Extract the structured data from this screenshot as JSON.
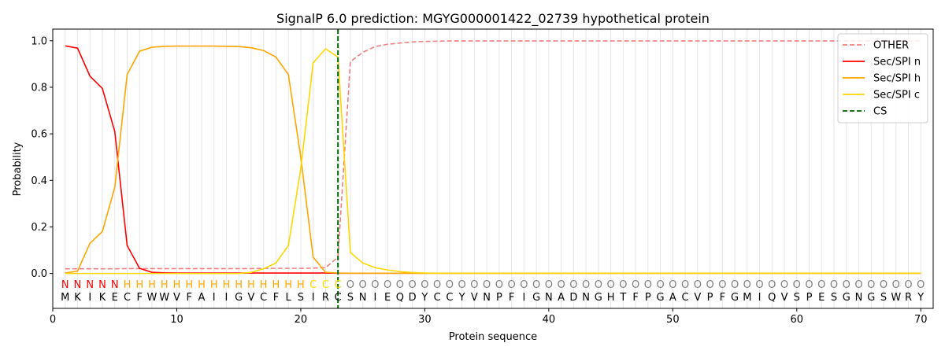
{
  "chart_data": {
    "type": "line",
    "title": "SignalP 6.0 prediction: MGYG000001422_02739 hypothetical protein",
    "xlabel": "Protein sequence",
    "ylabel": "Probability",
    "xlim": [
      0,
      71
    ],
    "ylim": [
      -0.15,
      1.05
    ],
    "xticks": [
      0,
      10,
      20,
      30,
      40,
      50,
      60,
      70
    ],
    "yticks": [
      0.0,
      0.2,
      0.4,
      0.6,
      0.8,
      1.0
    ],
    "ytick_labels": [
      "0.0",
      "0.2",
      "0.4",
      "0.6",
      "0.8",
      "1.0"
    ],
    "legend_position": "top-right",
    "sequence": [
      "M",
      "K",
      "I",
      "K",
      "E",
      "C",
      "F",
      "W",
      "W",
      "V",
      "F",
      "A",
      "I",
      "I",
      "G",
      "V",
      "C",
      "F",
      "L",
      "S",
      "I",
      "R",
      "C",
      "S",
      "N",
      "I",
      "E",
      "Q",
      "D",
      "Y",
      "C",
      "C",
      "Y",
      "V",
      "N",
      "P",
      "F",
      "I",
      "G",
      "N",
      "A",
      "D",
      "N",
      "G",
      "H",
      "T",
      "F",
      "P",
      "G",
      "A",
      "C",
      "V",
      "P",
      "F",
      "G",
      "M",
      "I",
      "Q",
      "V",
      "S",
      "P",
      "E",
      "S",
      "G",
      "N",
      "G",
      "S",
      "W",
      "R",
      "Y"
    ],
    "region_labels": [
      "N",
      "N",
      "N",
      "N",
      "N",
      "H",
      "H",
      "H",
      "H",
      "H",
      "H",
      "H",
      "H",
      "H",
      "H",
      "H",
      "H",
      "H",
      "H",
      "H",
      "C",
      "C",
      "C",
      "O",
      "O",
      "O",
      "O",
      "O",
      "O",
      "O",
      "O",
      "O",
      "O",
      "O",
      "O",
      "O",
      "O",
      "O",
      "O",
      "O",
      "O",
      "O",
      "O",
      "O",
      "O",
      "O",
      "O",
      "O",
      "O",
      "O",
      "O",
      "O",
      "O",
      "O",
      "O",
      "O",
      "O",
      "O",
      "O",
      "O",
      "O",
      "O",
      "O",
      "O",
      "O",
      "O",
      "O",
      "O",
      "O",
      "O"
    ],
    "region_colors": {
      "N": "#ff0000",
      "H": "#ffa500",
      "C": "#ffd700",
      "O": "#808080"
    },
    "cleavage_site": 23,
    "series": [
      {
        "name": "OTHER",
        "color": "#f08080",
        "dash": true,
        "values": [
          0.02,
          0.02,
          0.02,
          0.02,
          0.02,
          0.021,
          0.021,
          0.021,
          0.021,
          0.021,
          0.021,
          0.021,
          0.021,
          0.021,
          0.021,
          0.021,
          0.022,
          0.022,
          0.022,
          0.022,
          0.023,
          0.025,
          0.07,
          0.91,
          0.95,
          0.975,
          0.985,
          0.99,
          0.995,
          0.997,
          0.998,
          0.999,
          0.999,
          0.999,
          0.999,
          0.999,
          0.999,
          0.999,
          0.999,
          0.999,
          0.999,
          0.999,
          0.999,
          0.999,
          0.999,
          0.999,
          0.999,
          0.999,
          0.999,
          0.999,
          0.999,
          0.999,
          0.999,
          0.999,
          0.999,
          0.999,
          0.999,
          0.999,
          0.999,
          0.999,
          0.999,
          0.999,
          0.999,
          0.999,
          0.999,
          0.999,
          0.999,
          0.999,
          0.999,
          0.999
        ]
      },
      {
        "name": "Sec/SPI n",
        "color": "#ff0000",
        "dash": false,
        "values": [
          0.978,
          0.968,
          0.848,
          0.795,
          0.61,
          0.12,
          0.022,
          0.005,
          0.003,
          0.002,
          0.002,
          0.002,
          0.002,
          0.002,
          0.002,
          0.002,
          0.002,
          0.002,
          0.002,
          0.002,
          0.002,
          0.002,
          0.001,
          0.001,
          0.001,
          0.001,
          0.001,
          0.001,
          0.001,
          0.001,
          0.001,
          0.001,
          0.001,
          0.001,
          0.001,
          0.001,
          0.001,
          0.001,
          0.001,
          0.001,
          0.001,
          0.001,
          0.001,
          0.001,
          0.001,
          0.001,
          0.001,
          0.001,
          0.001,
          0.001,
          0.001,
          0.001,
          0.001,
          0.001,
          0.001,
          0.001,
          0.001,
          0.001,
          0.001,
          0.001,
          0.001,
          0.001,
          0.001,
          0.001,
          0.001,
          0.001,
          0.001,
          0.001,
          0.001,
          0.001
        ]
      },
      {
        "name": "Sec/SPI h",
        "color": "#ffa500",
        "dash": false,
        "values": [
          0.002,
          0.01,
          0.13,
          0.18,
          0.37,
          0.855,
          0.955,
          0.972,
          0.976,
          0.977,
          0.977,
          0.977,
          0.977,
          0.976,
          0.975,
          0.97,
          0.958,
          0.93,
          0.855,
          0.5,
          0.07,
          0.005,
          0.002,
          0.001,
          0.001,
          0.001,
          0.001,
          0.001,
          0.001,
          0.001,
          0.001,
          0.001,
          0.001,
          0.001,
          0.001,
          0.001,
          0.001,
          0.001,
          0.001,
          0.001,
          0.001,
          0.001,
          0.001,
          0.001,
          0.001,
          0.001,
          0.001,
          0.001,
          0.001,
          0.001,
          0.001,
          0.001,
          0.001,
          0.001,
          0.001,
          0.001,
          0.001,
          0.001,
          0.001,
          0.001,
          0.001,
          0.001,
          0.001,
          0.001,
          0.001,
          0.001,
          0.001,
          0.001,
          0.001,
          0.001
        ]
      },
      {
        "name": "Sec/SPI c",
        "color": "#ffd700",
        "dash": false,
        "values": [
          0.0,
          0.0,
          0.0,
          0.0,
          0.0,
          0.0,
          0.0,
          0.0,
          0.0,
          0.0,
          0.0,
          0.0,
          0.0,
          0.0,
          0.0,
          0.005,
          0.02,
          0.045,
          0.12,
          0.45,
          0.905,
          0.965,
          0.93,
          0.09,
          0.045,
          0.025,
          0.015,
          0.008,
          0.004,
          0.002,
          0.001,
          0.001,
          0.001,
          0.001,
          0.001,
          0.001,
          0.001,
          0.001,
          0.001,
          0.001,
          0.001,
          0.001,
          0.001,
          0.001,
          0.001,
          0.001,
          0.001,
          0.001,
          0.001,
          0.001,
          0.001,
          0.001,
          0.001,
          0.001,
          0.001,
          0.001,
          0.001,
          0.001,
          0.001,
          0.001,
          0.001,
          0.001,
          0.001,
          0.001,
          0.001,
          0.001,
          0.001,
          0.001,
          0.001,
          0.001
        ]
      }
    ],
    "legend": [
      {
        "label": "OTHER",
        "color": "#f08080",
        "dash": true
      },
      {
        "label": "Sec/SPI n",
        "color": "#ff0000",
        "dash": false
      },
      {
        "label": "Sec/SPI h",
        "color": "#ffa500",
        "dash": false
      },
      {
        "label": "Sec/SPI c",
        "color": "#ffd700",
        "dash": false
      },
      {
        "label": "CS",
        "color": "#006400",
        "dash": true
      }
    ]
  }
}
